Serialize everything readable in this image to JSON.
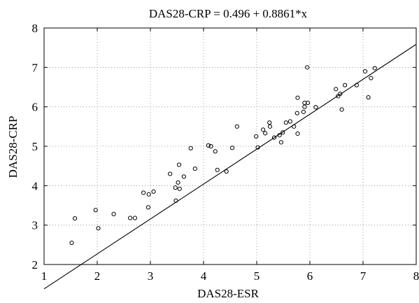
{
  "chart_data": {
    "type": "scatter",
    "title": "DAS28-CRP = 0.496 + 0.8861*x",
    "xlabel": "DAS28-ESR",
    "ylabel": "DAS28-CRP",
    "xlim": [
      1,
      8
    ],
    "ylim": [
      2,
      8
    ],
    "xticks": [
      1,
      2,
      3,
      4,
      5,
      6,
      7,
      8
    ],
    "yticks": [
      2,
      3,
      4,
      5,
      6,
      7,
      8
    ],
    "grid": true,
    "grid_style": "dotted",
    "point_marker": "open-circle",
    "regression_line": {
      "intercept": 0.496,
      "slope": 0.8861
    },
    "points": [
      [
        1.52,
        2.55
      ],
      [
        1.58,
        3.17
      ],
      [
        1.97,
        3.38
      ],
      [
        2.02,
        2.92
      ],
      [
        2.31,
        3.28
      ],
      [
        2.62,
        3.18
      ],
      [
        2.71,
        3.18
      ],
      [
        2.87,
        3.82
      ],
      [
        2.96,
        3.45
      ],
      [
        2.97,
        3.78
      ],
      [
        3.06,
        3.85
      ],
      [
        3.37,
        4.3
      ],
      [
        3.47,
        3.95
      ],
      [
        3.48,
        3.62
      ],
      [
        3.52,
        4.08
      ],
      [
        3.54,
        4.53
      ],
      [
        3.55,
        3.92
      ],
      [
        3.63,
        4.23
      ],
      [
        3.76,
        4.95
      ],
      [
        3.84,
        4.43
      ],
      [
        4.09,
        5.02
      ],
      [
        4.14,
        5.0
      ],
      [
        4.22,
        4.87
      ],
      [
        4.26,
        4.4
      ],
      [
        4.43,
        4.36
      ],
      [
        4.54,
        4.96
      ],
      [
        4.63,
        5.5
      ],
      [
        4.99,
        5.25
      ],
      [
        5.02,
        4.97
      ],
      [
        5.12,
        5.42
      ],
      [
        5.16,
        5.33
      ],
      [
        5.24,
        5.6
      ],
      [
        5.25,
        5.5
      ],
      [
        5.33,
        5.22
      ],
      [
        5.43,
        5.28
      ],
      [
        5.46,
        5.1
      ],
      [
        5.49,
        5.35
      ],
      [
        5.55,
        5.6
      ],
      [
        5.63,
        5.63
      ],
      [
        5.7,
        5.5
      ],
      [
        5.77,
        5.32
      ],
      [
        5.76,
        5.84
      ],
      [
        5.77,
        6.23
      ],
      [
        5.88,
        5.87
      ],
      [
        5.9,
        6.0
      ],
      [
        5.9,
        6.1
      ],
      [
        5.96,
        6.1
      ],
      [
        5.95,
        7.0
      ],
      [
        6.11,
        5.99
      ],
      [
        6.49,
        6.45
      ],
      [
        6.53,
        6.27
      ],
      [
        6.57,
        6.33
      ],
      [
        6.6,
        5.93
      ],
      [
        6.66,
        6.55
      ],
      [
        6.88,
        6.55
      ],
      [
        7.04,
        6.9
      ],
      [
        7.1,
        6.24
      ],
      [
        7.15,
        6.73
      ],
      [
        7.22,
        6.98
      ]
    ]
  }
}
